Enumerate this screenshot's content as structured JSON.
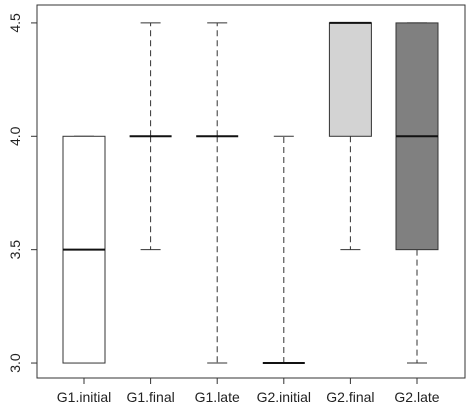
{
  "chart_data": {
    "type": "boxplot",
    "categories": [
      "G1.initial",
      "G1.final",
      "G1.late",
      "G2.initial",
      "G2.final",
      "G2.late"
    ],
    "boxes": [
      {
        "whisker_low": 3.0,
        "q1": 3.0,
        "median": 3.5,
        "q3": 4.0,
        "whisker_high": 4.0,
        "color": "#ffffff"
      },
      {
        "whisker_low": 3.5,
        "q1": 4.0,
        "median": 4.0,
        "q3": 4.0,
        "whisker_high": 4.5,
        "color": "#ffffff"
      },
      {
        "whisker_low": 3.0,
        "q1": 4.0,
        "median": 4.0,
        "q3": 4.0,
        "whisker_high": 4.5,
        "color": "#ffffff"
      },
      {
        "whisker_low": 3.0,
        "q1": 3.0,
        "median": 3.0,
        "q3": 3.0,
        "whisker_high": 4.0,
        "color": "#ffffff"
      },
      {
        "whisker_low": 3.5,
        "q1": 4.0,
        "median": 4.5,
        "q3": 4.5,
        "whisker_high": 4.5,
        "color": "#d3d3d3"
      },
      {
        "whisker_low": 3.0,
        "q1": 3.5,
        "median": 4.0,
        "q3": 4.5,
        "whisker_high": 4.5,
        "color": "#808080"
      }
    ],
    "ylim": [
      2.934,
      4.579
    ],
    "yticks": [
      {
        "value": 3.0,
        "label": "3.0"
      },
      {
        "value": 3.5,
        "label": "3.5"
      },
      {
        "value": 4.0,
        "label": "4.0"
      },
      {
        "value": 4.5,
        "label": "4.5"
      }
    ]
  }
}
